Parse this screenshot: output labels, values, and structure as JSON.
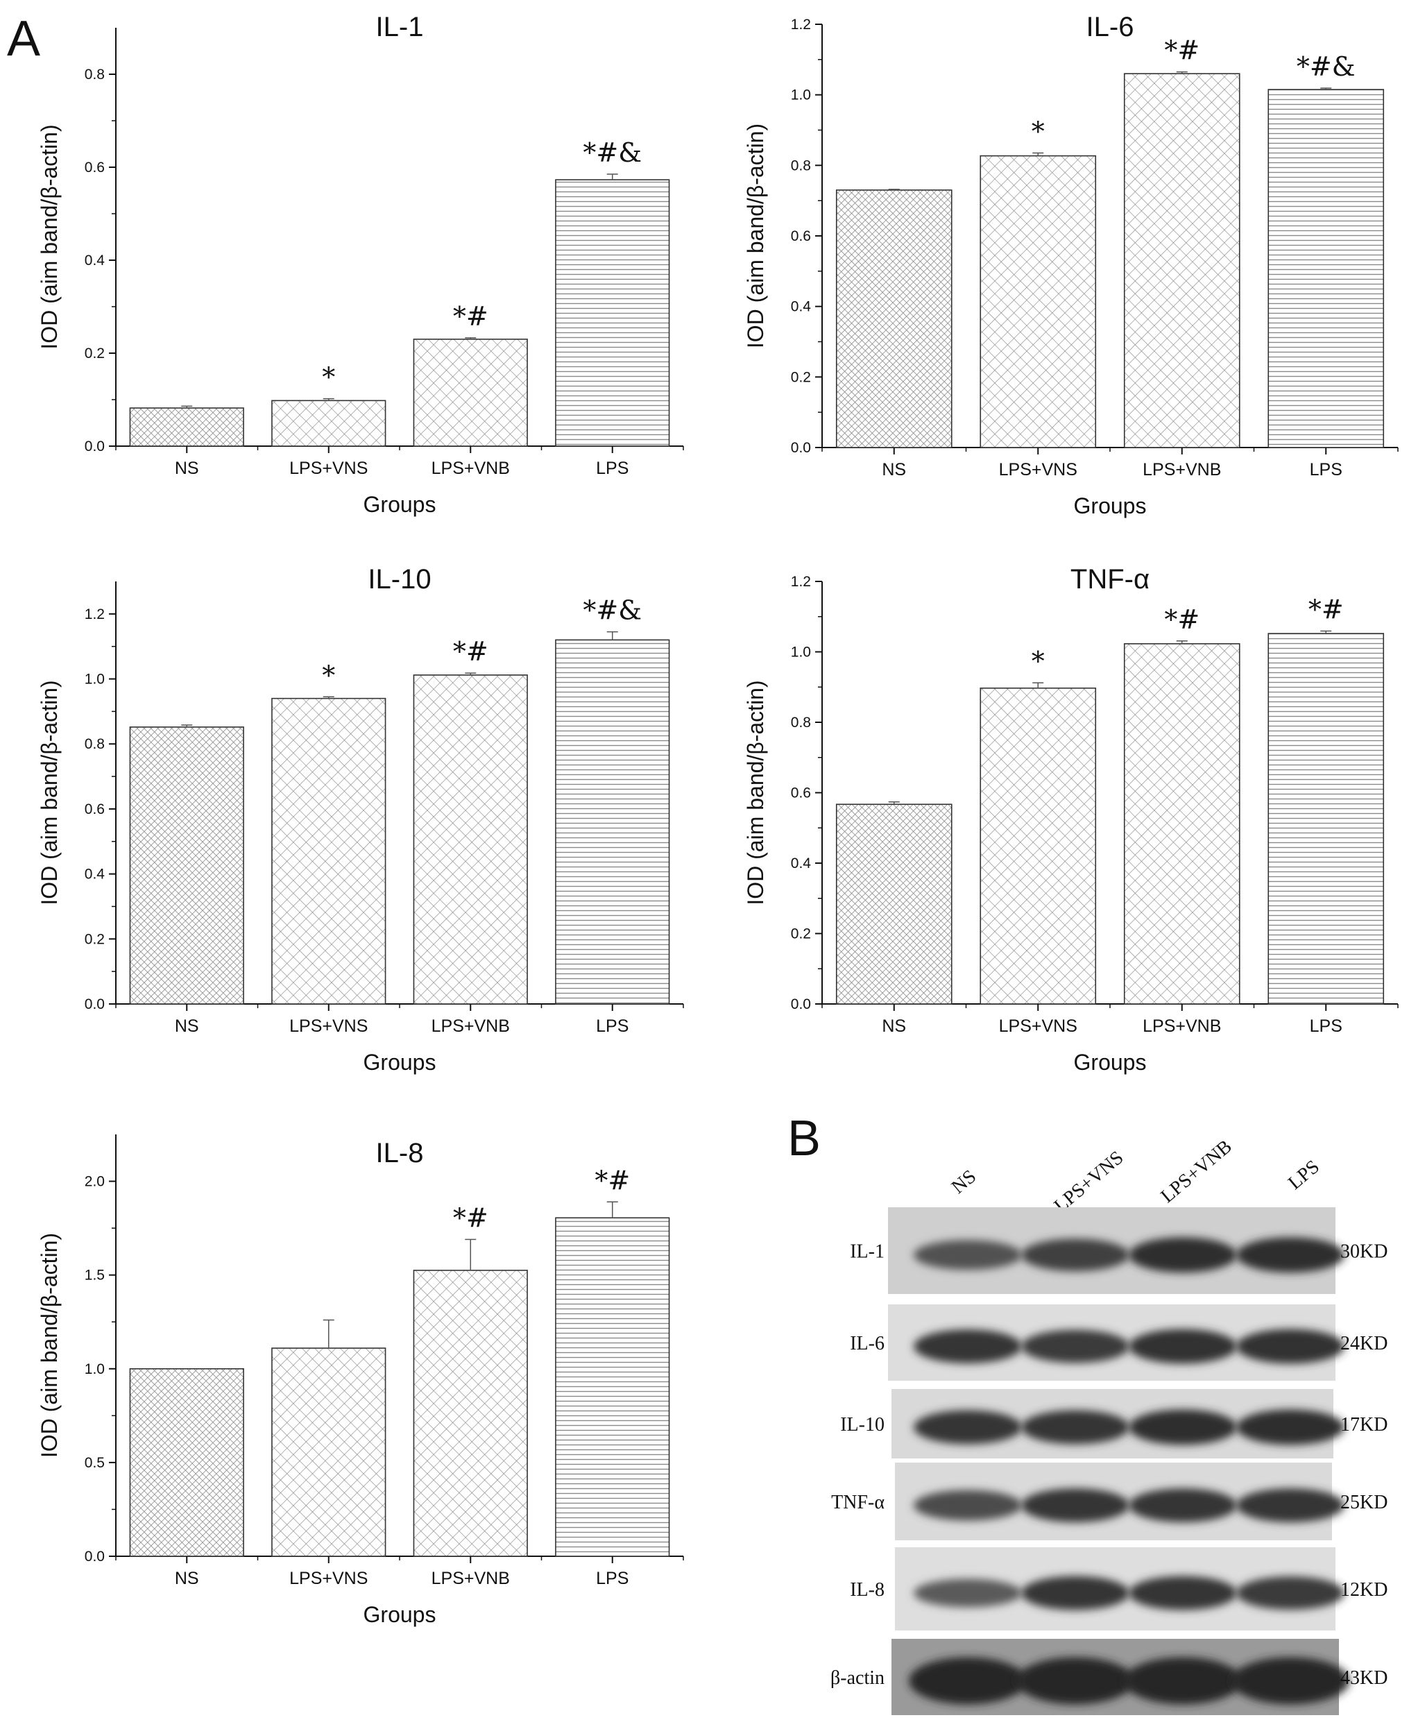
{
  "panel_a_label": "A",
  "panel_b_label": "B",
  "chart_data": [
    {
      "type": "bar",
      "title": "IL-1",
      "xlabel": "Groups",
      "ylabel": "IOD (aim band/β-actin)",
      "categories": [
        "NS",
        "LPS+VNS",
        "LPS+VNB",
        "LPS"
      ],
      "values": [
        0.082,
        0.098,
        0.23,
        0.573
      ],
      "errors": [
        0.004,
        0.004,
        0.003,
        0.012
      ],
      "annotations": [
        "",
        "*",
        "*#",
        "*#&"
      ],
      "ylim": [
        0,
        0.9
      ],
      "yticks": [
        0.0,
        0.2,
        0.4,
        0.6,
        0.8
      ],
      "tick_decimals": 1
    },
    {
      "type": "bar",
      "title": "IL-6",
      "xlabel": "Groups",
      "ylabel": "IOD (aim band/β-actin)",
      "categories": [
        "NS",
        "LPS+VNS",
        "LPS+VNB",
        "LPS"
      ],
      "values": [
        0.73,
        0.827,
        1.06,
        1.015
      ],
      "errors": [
        0.002,
        0.008,
        0.005,
        0.004
      ],
      "annotations": [
        "",
        "*",
        "*#",
        "*#&"
      ],
      "ylim": [
        0,
        1.2
      ],
      "yticks": [
        0.0,
        0.2,
        0.4,
        0.6,
        0.8,
        1.0,
        1.2
      ],
      "tick_decimals": 1
    },
    {
      "type": "bar",
      "title": "IL-10",
      "xlabel": "Groups",
      "ylabel": "IOD (aim band/β-actin)",
      "categories": [
        "NS",
        "LPS+VNS",
        "LPS+VNB",
        "LPS"
      ],
      "values": [
        0.852,
        0.94,
        1.012,
        1.12
      ],
      "errors": [
        0.006,
        0.005,
        0.006,
        0.025
      ],
      "annotations": [
        "",
        "*",
        "*#",
        "*#&"
      ],
      "ylim": [
        0,
        1.3
      ],
      "yticks": [
        0.0,
        0.2,
        0.4,
        0.6,
        0.8,
        1.0,
        1.2
      ],
      "tick_decimals": 1
    },
    {
      "type": "bar",
      "title": "TNF-α",
      "xlabel": "Groups",
      "ylabel": "IOD (aim band/β-actin)",
      "categories": [
        "NS",
        "LPS+VNS",
        "LPS+VNB",
        "LPS"
      ],
      "values": [
        0.567,
        0.897,
        1.023,
        1.052
      ],
      "errors": [
        0.007,
        0.015,
        0.008,
        0.007
      ],
      "annotations": [
        "",
        "*",
        "*#",
        "*#"
      ],
      "ylim": [
        0,
        1.2
      ],
      "yticks": [
        0.0,
        0.2,
        0.4,
        0.6,
        0.8,
        1.0,
        1.2
      ],
      "tick_decimals": 1
    },
    {
      "type": "bar",
      "title": "IL-8",
      "xlabel": "Groups",
      "ylabel": "IOD (aim band/β-actin)",
      "categories": [
        "NS",
        "LPS+VNS",
        "LPS+VNB",
        "LPS"
      ],
      "values": [
        1.0,
        1.11,
        1.525,
        1.805
      ],
      "errors": [
        0.0,
        0.15,
        0.165,
        0.085
      ],
      "annotations": [
        "",
        "",
        "*#",
        "*#"
      ],
      "ylim": [
        0,
        2.25
      ],
      "yticks": [
        0.0,
        0.5,
        1.0,
        1.5,
        2.0
      ],
      "tick_decimals": 1
    }
  ],
  "western_blot": {
    "lanes": [
      "NS",
      "LPS+VNS",
      "LPS+VNB",
      "LPS"
    ],
    "rows": [
      {
        "protein": "IL-1",
        "size": "30KD"
      },
      {
        "protein": "IL-6",
        "size": "24KD"
      },
      {
        "protein": "IL-10",
        "size": "17KD"
      },
      {
        "protein": "TNF-α",
        "size": "25KD"
      },
      {
        "protein": "IL-8",
        "size": "12KD"
      },
      {
        "protein": "β-actin",
        "size": "43KD"
      }
    ]
  },
  "colors": {
    "axis": "#111111",
    "bar_outline": "#333333",
    "hatch": "#8a8a8a",
    "bar_fill": "#ffffff"
  }
}
